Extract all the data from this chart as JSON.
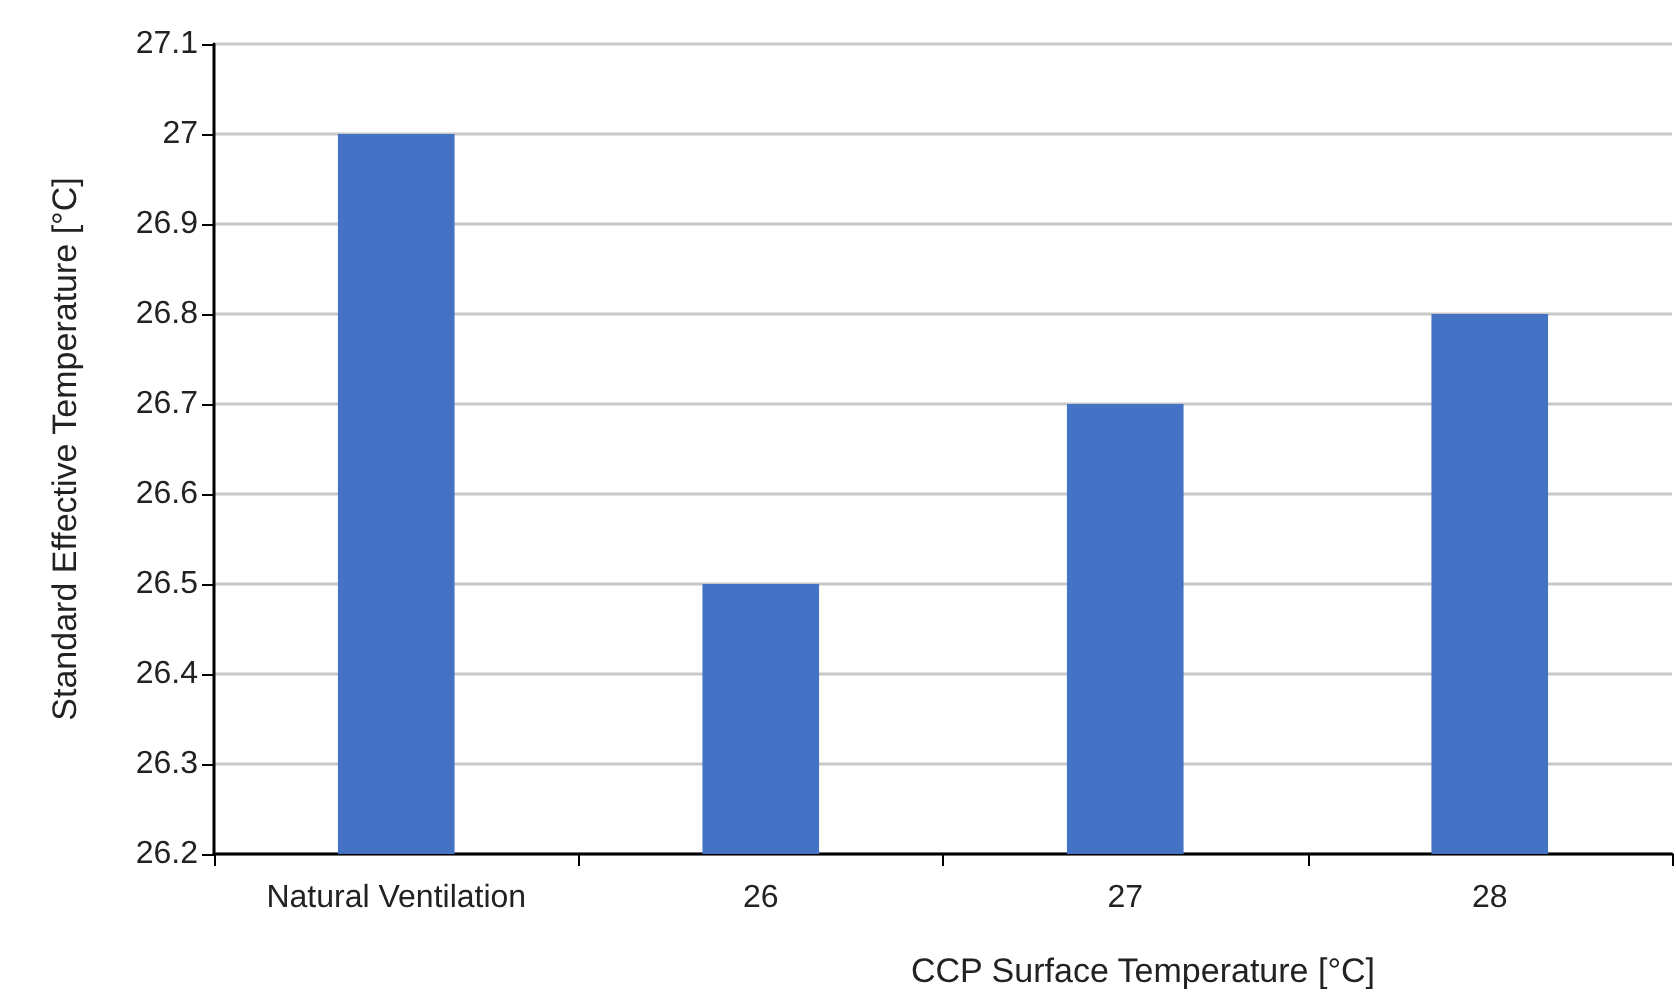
{
  "chart_data": {
    "type": "bar",
    "xlabel": "CCP Surface Temperature [°C]",
    "ylabel": "Standard Effective Temperature [°C]",
    "categories": [
      "Natural Ventilation",
      "26",
      "27",
      "28"
    ],
    "values": [
      27,
      26.5,
      26.7,
      26.8
    ],
    "color": "#4472c4",
    "ylim": [
      26.2,
      27.1
    ],
    "yticks": [
      26.2,
      26.3,
      26.4,
      26.5,
      26.6,
      26.7,
      26.8,
      26.9,
      27,
      27.1
    ],
    "grid": "y"
  }
}
